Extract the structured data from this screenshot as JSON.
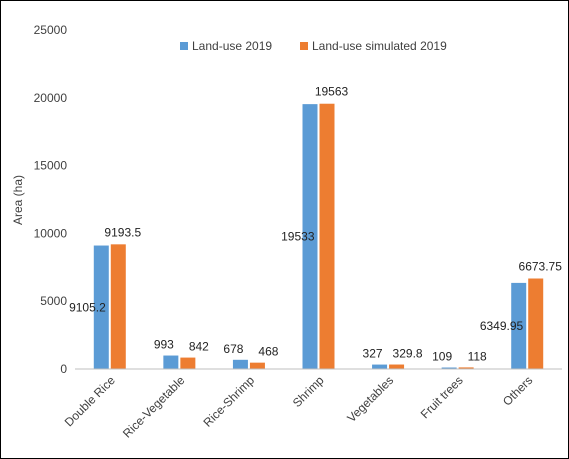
{
  "chart_data": {
    "type": "bar",
    "title": "",
    "xlabel": "",
    "ylabel": "Area (ha)",
    "ylim": [
      0,
      25000
    ],
    "y_ticks": [
      "0",
      "5000",
      "10000",
      "15000",
      "20000",
      "25000"
    ],
    "categories": [
      "Double Rice",
      "Rice-Vegetable",
      "Rice-Shrimp",
      "Shrimp",
      "Vegetables",
      "Fruit trees",
      "Others"
    ],
    "series": [
      {
        "name": "Land-use 2019",
        "color": "#5B9BD5",
        "values": [
          9105.2,
          993,
          678,
          19533,
          327,
          109,
          6349.95
        ],
        "labels": [
          "9105.2",
          "993",
          "678",
          "19533",
          "327",
          "109",
          "6349.95"
        ]
      },
      {
        "name": "Land-use simulated 2019",
        "color": "#ED7D31",
        "values": [
          9193.5,
          842,
          468,
          19563,
          329.8,
          118,
          6673.75
        ],
        "labels": [
          "9193.5",
          "842",
          "468",
          "19563",
          "329.8",
          "118",
          "6673.75"
        ]
      }
    ],
    "grid": false,
    "legend_position": "top"
  }
}
